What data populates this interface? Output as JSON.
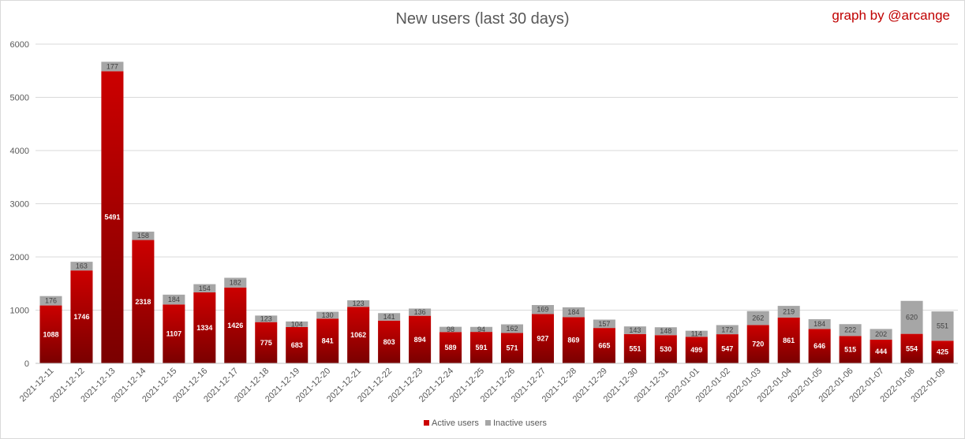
{
  "header": {
    "credit": "graph by @arcange"
  },
  "colors": {
    "active_top": "#cc0000",
    "active_bottom": "#7a0000",
    "inactive": "#a6a6a6",
    "grid": "#d9d9d9",
    "axis_text": "#595959"
  },
  "chart_data": {
    "type": "bar",
    "stacked": true,
    "title": "New users (last 30 days)",
    "xlabel": "",
    "ylabel": "",
    "ylim": [
      0,
      6000
    ],
    "yticks": [
      0,
      1000,
      2000,
      3000,
      4000,
      5000,
      6000
    ],
    "grid": true,
    "legend_position": "bottom",
    "categories": [
      "2021-12-11",
      "2021-12-12",
      "2021-12-13",
      "2021-12-14",
      "2021-12-15",
      "2021-12-16",
      "2021-12-17",
      "2021-12-18",
      "2021-12-19",
      "2021-12-20",
      "2021-12-21",
      "2021-12-22",
      "2021-12-23",
      "2021-12-24",
      "2021-12-25",
      "2021-12-26",
      "2021-12-27",
      "2021-12-28",
      "2021-12-29",
      "2021-12-30",
      "2021-12-31",
      "2022-01-01",
      "2022-01-02",
      "2022-01-03",
      "2022-01-04",
      "2022-01-05",
      "2022-01-06",
      "2022-01-07",
      "2022-01-08",
      "2022-01-09"
    ],
    "series": [
      {
        "name": "Active users",
        "values": [
          1088,
          1746,
          5491,
          2318,
          1107,
          1334,
          1426,
          775,
          683,
          841,
          1062,
          803,
          894,
          589,
          591,
          571,
          927,
          869,
          665,
          551,
          530,
          499,
          547,
          720,
          861,
          646,
          515,
          444,
          554,
          425
        ]
      },
      {
        "name": "Inactive users",
        "values": [
          176,
          163,
          177,
          158,
          184,
          154,
          182,
          123,
          104,
          130,
          123,
          141,
          136,
          98,
          94,
          162,
          169,
          184,
          157,
          143,
          148,
          114,
          172,
          262,
          219,
          184,
          222,
          202,
          620,
          551
        ]
      }
    ]
  }
}
